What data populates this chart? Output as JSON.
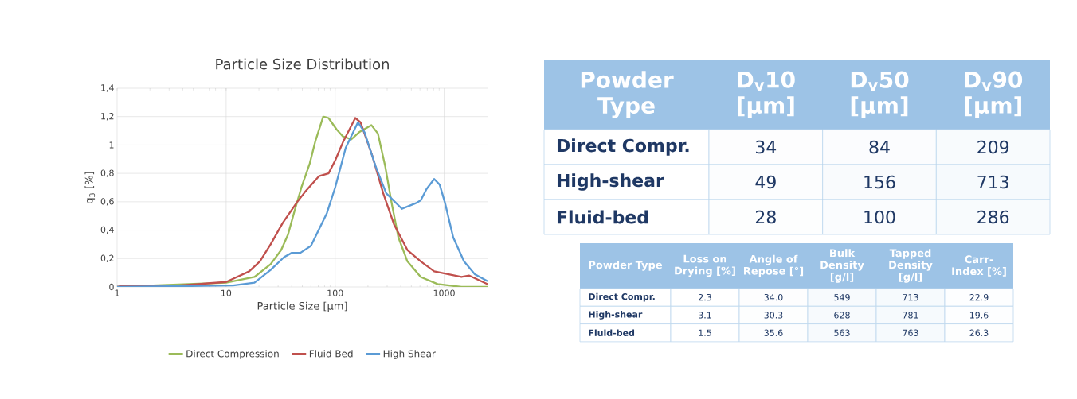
{
  "chart_data": [
    {
      "type": "line",
      "title": "Particle Size Distribution",
      "xlabel": "Particle Size [µm]",
      "ylabel": "q$_{3}$ [%]",
      "log": "x",
      "grid": true,
      "legend": "bottom",
      "xlim": [
        1,
        2500
      ],
      "ylim": [
        0,
        1.4
      ],
      "xticks": [
        1,
        10,
        100,
        1000
      ],
      "yticks": [
        0,
        {
          "value": 0.2,
          "label": "0,2"
        },
        {
          "value": 0.4,
          "label": "0,4"
        },
        {
          "value": 0.6,
          "label": "0,6"
        },
        {
          "value": 0.8,
          "label": "0,8"
        },
        1,
        {
          "value": 1.2,
          "label": "1,2"
        },
        {
          "value": 1.4,
          "label": "1,4"
        }
      ],
      "series": [
        {
          "name": "Direct Compression",
          "color": "#9bbb59",
          "x": [
            1,
            10,
            18.2,
            25.6,
            32,
            37,
            42.6,
            49,
            58.5,
            66,
            77.8,
            87,
            103,
            118,
            141,
            166,
            215,
            247,
            288,
            330,
            380,
            460,
            610,
            870,
            1440,
            2500
          ],
          "values": [
            0,
            0.03,
            0.07,
            0.16,
            0.26,
            0.37,
            0.54,
            0.7,
            0.87,
            1.03,
            1.2,
            1.19,
            1.11,
            1.06,
            1.04,
            1.09,
            1.14,
            1.08,
            0.85,
            0.59,
            0.35,
            0.18,
            0.07,
            0.02,
            0,
            0
          ]
        },
        {
          "name": "Fluid Bed",
          "color": "#c0504d",
          "x": [
            1,
            1.2,
            3.7,
            10,
            16.3,
            20.4,
            25.6,
            33,
            45,
            53,
            71,
            87,
            100,
            118,
            153,
            171,
            220,
            276,
            347,
            460,
            610,
            810,
            1080,
            1440,
            1700,
            2500
          ],
          "values": [
            0,
            0.01,
            0.01,
            0.035,
            0.11,
            0.18,
            0.3,
            0.45,
            0.6,
            0.67,
            0.78,
            0.8,
            0.89,
            1.02,
            1.19,
            1.16,
            0.92,
            0.66,
            0.44,
            0.26,
            0.18,
            0.11,
            0.09,
            0.07,
            0.08,
            0.02
          ]
        },
        {
          "name": "High Shear",
          "color": "#5b9bd5",
          "x": [
            1,
            11.6,
            18.2,
            25.6,
            34,
            40,
            48,
            60,
            84,
            100,
            125,
            162,
            186,
            235,
            294,
            410,
            550,
            610,
            690,
            810,
            910,
            1020,
            1210,
            1520,
            1910,
            2500
          ],
          "values": [
            0,
            0.01,
            0.03,
            0.12,
            0.21,
            0.24,
            0.24,
            0.29,
            0.52,
            0.7,
            0.98,
            1.16,
            1.09,
            0.85,
            0.66,
            0.55,
            0.59,
            0.61,
            0.69,
            0.76,
            0.72,
            0.59,
            0.35,
            0.18,
            0.09,
            0.04
          ]
        }
      ]
    },
    {
      "type": "heatmap",
      "ylabel": "Powder Type",
      "categories": [
        "D$_{v}$10 [μm]",
        "D$_{v}$50 [μm]",
        "D$_{v}$90 [μm]"
      ],
      "y_categories": [
        "Direct Compr.",
        "High-shear",
        "Fluid-bed"
      ],
      "cells": [
        [
          34,
          84,
          209
        ],
        [
          49,
          156,
          713
        ],
        [
          28,
          100,
          286
        ]
      ],
      "cell_labels": [
        [
          "34",
          "84",
          "209"
        ],
        [
          "49",
          "156",
          "713"
        ],
        [
          "28",
          "100",
          "286"
        ]
      ]
    },
    {
      "type": "heatmap",
      "ylabel": "Powder Type",
      "categories": [
        "Loss on Drying [%]",
        "Angle of Repose [°]",
        "Bulk Density [g/l]",
        "Tapped Density [g/l]",
        "Carr-Index [%]"
      ],
      "y_categories": [
        "Direct Compr.",
        "High-shear",
        "Fluid-bed"
      ],
      "cells": [
        [
          2.3,
          34.0,
          549,
          713,
          22.9
        ],
        [
          3.1,
          30.3,
          628,
          781,
          19.6
        ],
        [
          1.5,
          35.6,
          563,
          763,
          26.3
        ]
      ],
      "cell_labels": [
        [
          "2.3",
          "34.0",
          "549",
          "713",
          "22.9"
        ],
        [
          "3.1",
          "30.3",
          "628",
          "781",
          "19.6"
        ],
        [
          "1.5",
          "35.6",
          "563",
          "763",
          "26.3"
        ]
      ]
    }
  ]
}
